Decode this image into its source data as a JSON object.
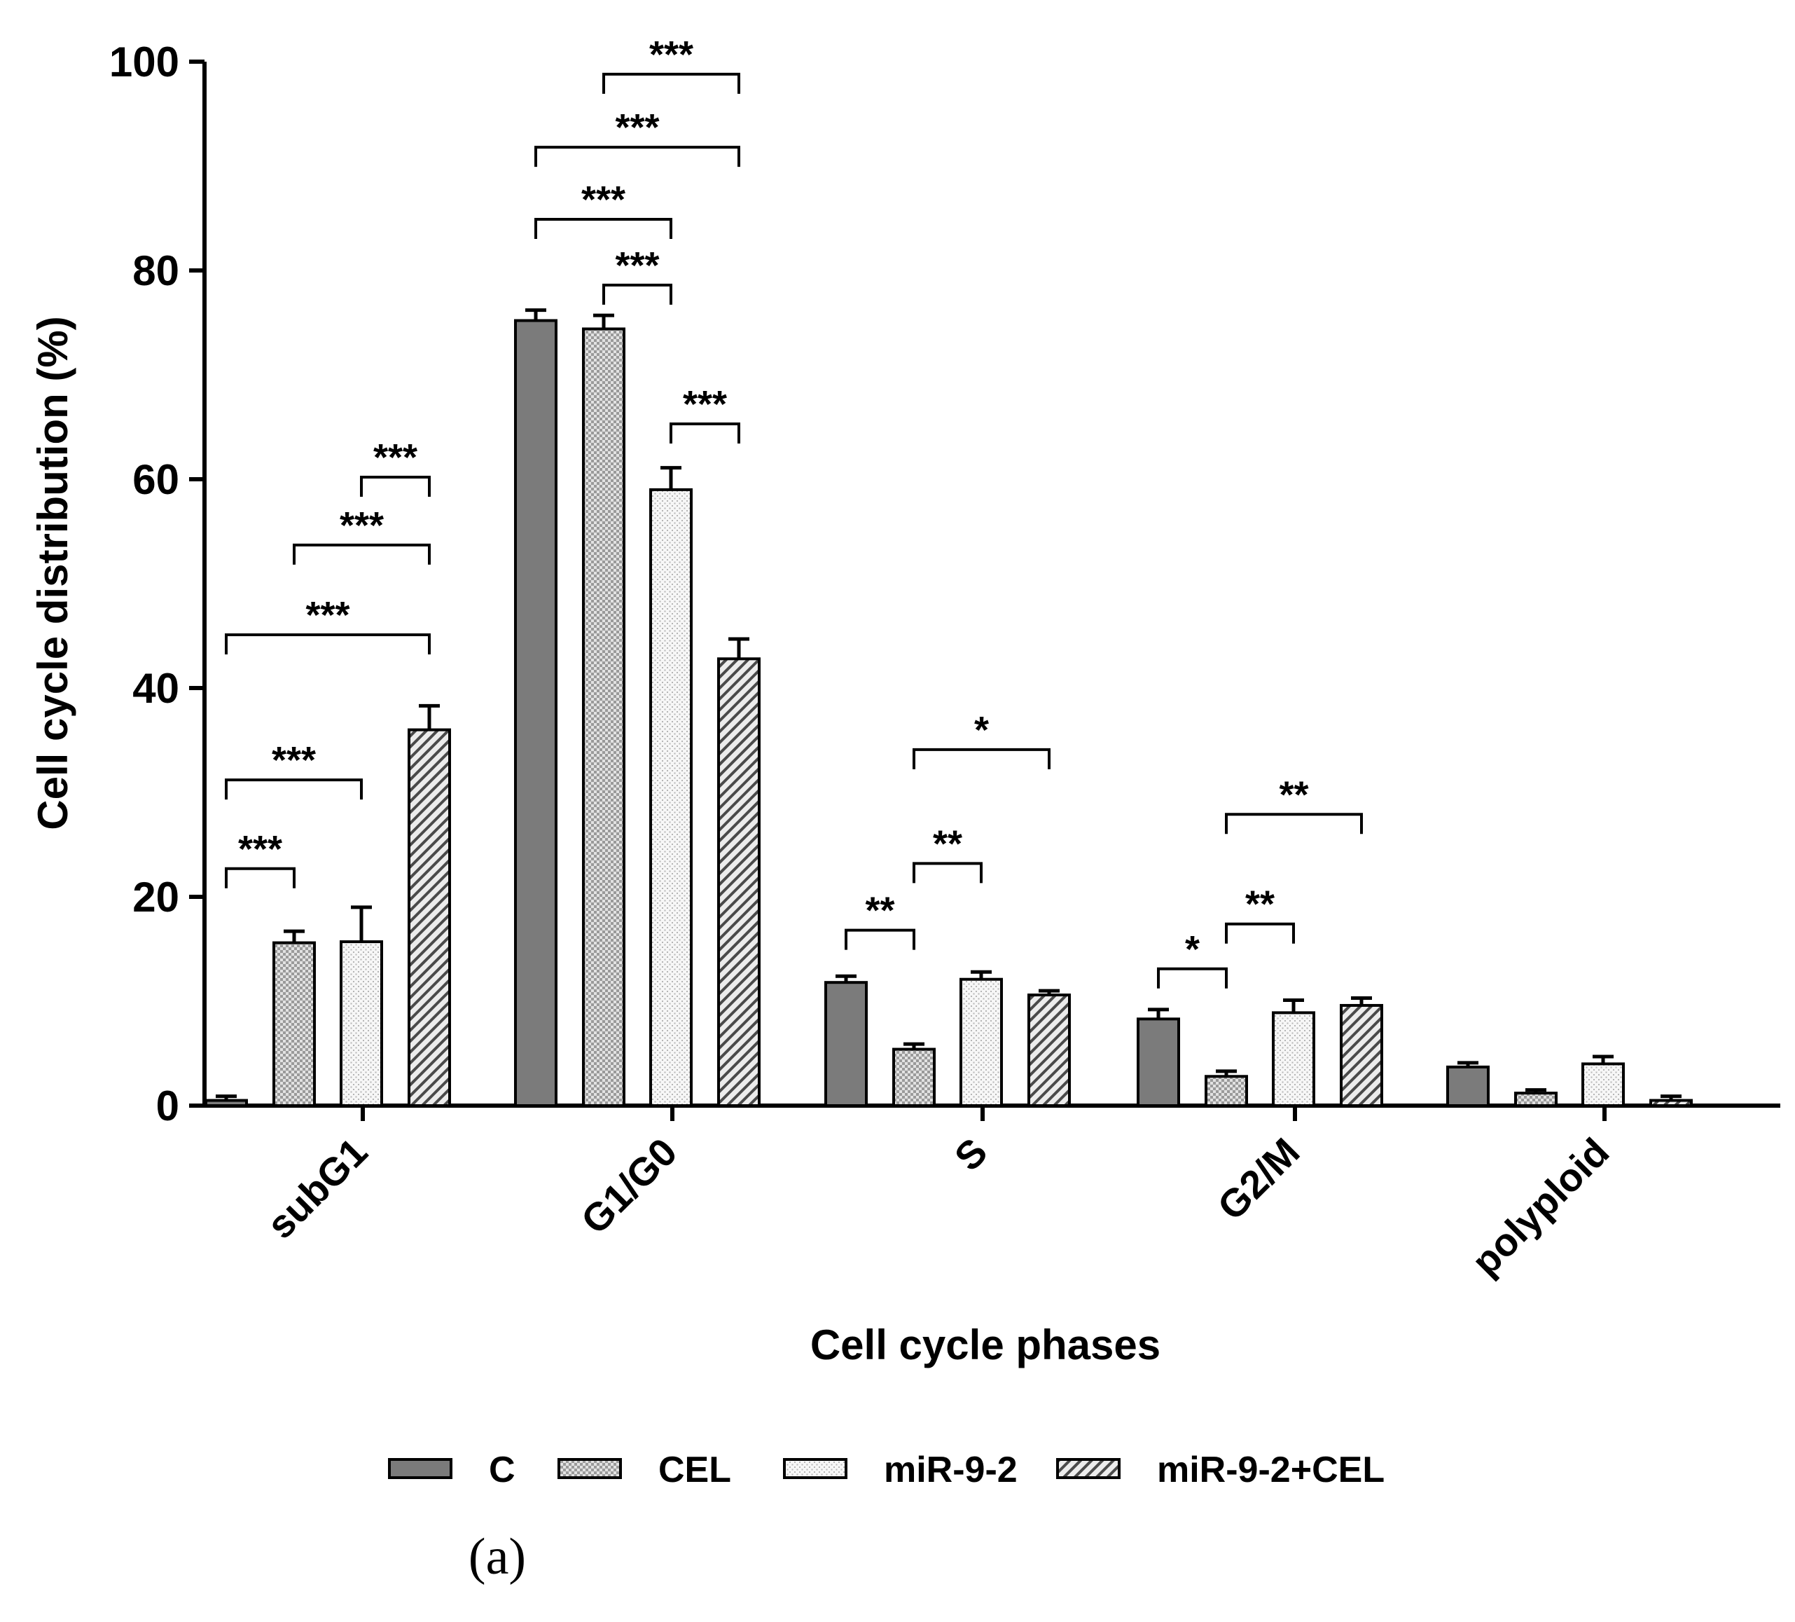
{
  "chart_data": {
    "type": "bar",
    "title": "",
    "xlabel": "Cell cycle phases",
    "ylabel": "Cell cycle distribution (%)",
    "ylim": [
      0,
      100
    ],
    "yticks": [
      "0",
      "20",
      "40",
      "60",
      "80",
      "100"
    ],
    "categories": [
      "subG1",
      "G1/G0",
      "S",
      "G2/M",
      "polyploid"
    ],
    "series": [
      {
        "name": "C",
        "pattern": "solid-gray",
        "values": [
          0.5,
          75.2,
          11.8,
          8.3,
          3.7
        ],
        "errors": [
          0.4,
          1.0,
          0.6,
          0.9,
          0.4
        ]
      },
      {
        "name": "CEL",
        "pattern": "grid",
        "values": [
          15.6,
          74.4,
          5.4,
          2.8,
          1.2
        ],
        "errors": [
          1.1,
          1.3,
          0.5,
          0.5,
          0.3
        ]
      },
      {
        "name": "miR-9-2",
        "pattern": "dots",
        "values": [
          15.7,
          59.0,
          12.1,
          8.9,
          4.0
        ],
        "errors": [
          3.3,
          2.1,
          0.7,
          1.2,
          0.7
        ]
      },
      {
        "name": "miR-9-2+CEL",
        "pattern": "diagonal",
        "values": [
          36.0,
          42.8,
          10.6,
          9.6,
          0.5
        ],
        "errors": [
          2.3,
          1.9,
          0.4,
          0.7,
          0.4
        ]
      }
    ],
    "significance": [
      {
        "cat": 0,
        "from": 0,
        "to": 1,
        "label": "***",
        "y": 22.7
      },
      {
        "cat": 0,
        "from": 0,
        "to": 2,
        "label": "***",
        "y": 31.2
      },
      {
        "cat": 0,
        "from": 0,
        "to": 3,
        "label": "***",
        "y": 45.1
      },
      {
        "cat": 0,
        "from": 1,
        "to": 3,
        "label": "***",
        "y": 53.7
      },
      {
        "cat": 0,
        "from": 2,
        "to": 3,
        "label": "***",
        "y": 60.2
      },
      {
        "cat": 1,
        "from": 1,
        "to": 2,
        "label": "***",
        "y": 78.6
      },
      {
        "cat": 1,
        "from": 0,
        "to": 2,
        "label": "***",
        "y": 84.9
      },
      {
        "cat": 1,
        "from": 0,
        "to": 3,
        "label": "***",
        "y": 91.8
      },
      {
        "cat": 1,
        "from": 1,
        "to": 3,
        "label": "***",
        "y": 98.8
      },
      {
        "cat": 1,
        "from": 2,
        "to": 3,
        "label": "***",
        "y": 65.3
      },
      {
        "cat": 2,
        "from": 0,
        "to": 1,
        "label": "**",
        "y": 16.8
      },
      {
        "cat": 2,
        "from": 1,
        "to": 2,
        "label": "**",
        "y": 23.2
      },
      {
        "cat": 2,
        "from": 1,
        "to": 3,
        "label": "*",
        "y": 34.1
      },
      {
        "cat": 3,
        "from": 0,
        "to": 1,
        "label": "*",
        "y": 13.1
      },
      {
        "cat": 3,
        "from": 1,
        "to": 2,
        "label": "**",
        "y": 17.4
      },
      {
        "cat": 3,
        "from": 1,
        "to": 3,
        "label": "**",
        "y": 27.9
      }
    ],
    "legend_position": "bottom-center"
  },
  "caption": "(a)"
}
